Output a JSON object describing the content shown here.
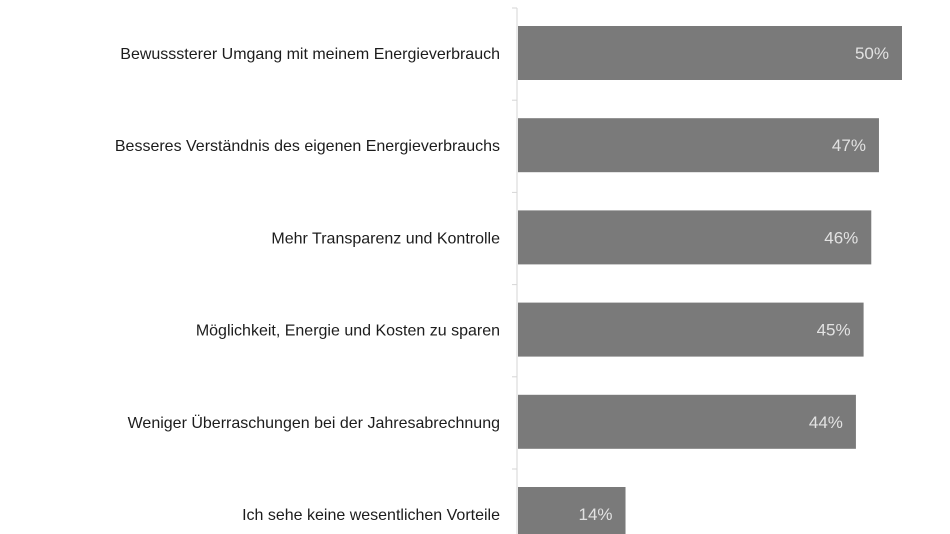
{
  "chart_data": {
    "type": "bar",
    "orientation": "horizontal",
    "categories": [
      "Bewusssterer Umgang mit meinem Energieverbrauch",
      "Besseres Verständnis des eigenen Energieverbrauchs",
      "Mehr Transparenz und Kontrolle",
      "Möglichkeit, Energie und Kosten zu sparen",
      "Weniger Überraschungen bei der Jahresabrechnung",
      "Ich sehe keine wesentlichen Vorteile"
    ],
    "values": [
      50,
      47,
      46,
      45,
      44,
      14
    ],
    "value_labels": [
      "50%",
      "47%",
      "46%",
      "45%",
      "44%",
      "14%"
    ],
    "unit": "%",
    "xlim": [
      0,
      50
    ],
    "title": "",
    "xlabel": "",
    "ylabel": "",
    "grid": false,
    "colors": {
      "bar": "#7a7a7a",
      "value_text": "#e2e2e2",
      "label_text": "#1c1c1c",
      "axis": "#d6d6d6"
    }
  }
}
